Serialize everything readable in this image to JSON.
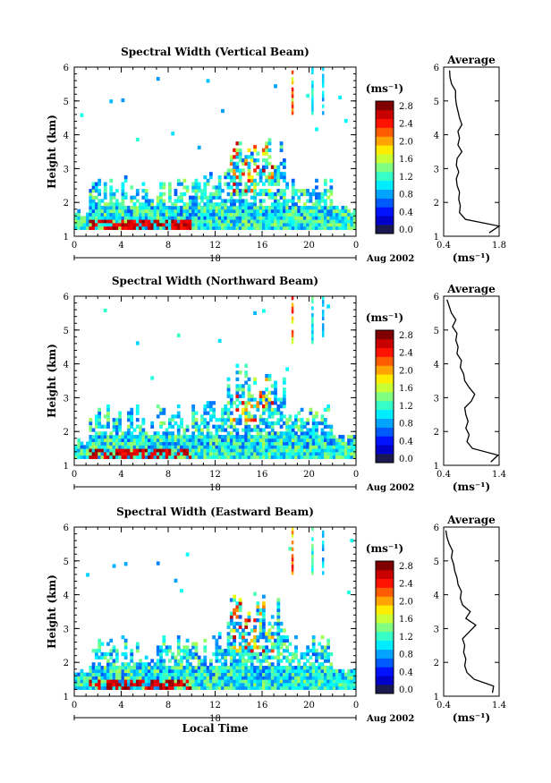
{
  "chart_data": [
    {
      "type": "heatmap",
      "title": "Spectral Width (Vertical Beam)",
      "ylabel": "Height (km)",
      "xlim": [
        0,
        24
      ],
      "ylim": [
        1,
        6
      ],
      "x_ticks": [
        "0",
        "4",
        "8",
        "12",
        "16",
        "20",
        "0"
      ],
      "y_ticks": [
        "1",
        "2",
        "3",
        "4",
        "5",
        "6"
      ],
      "date_bar_label": "18",
      "date_text": "Aug 2002",
      "colorbar": {
        "label": "(ms⁻¹)",
        "range": [
          0.0,
          2.8
        ],
        "ticks": [
          "0.0",
          "0.4",
          "0.8",
          "1.2",
          "1.6",
          "2.0",
          "2.4",
          "2.8"
        ]
      },
      "profile": {
        "title": "Average",
        "xlabel": "(ms⁻¹)",
        "xlim": [
          0.4,
          1.8
        ],
        "x_ticks": [
          "0.4",
          "1.8"
        ],
        "heights": [
          1.1,
          1.3,
          1.5,
          1.7,
          1.9,
          2.1,
          2.3,
          2.5,
          2.7,
          2.9,
          3.1,
          3.3,
          3.5,
          3.7,
          3.9,
          4.1,
          4.3,
          4.5,
          4.7,
          4.9,
          5.1,
          5.3,
          5.5,
          5.7,
          5.9
        ],
        "values": [
          1.55,
          1.8,
          0.95,
          0.8,
          0.82,
          0.78,
          0.8,
          0.74,
          0.72,
          0.78,
          0.72,
          0.74,
          0.86,
          0.76,
          0.8,
          0.76,
          0.86,
          0.8,
          0.76,
          0.72,
          0.7,
          0.7,
          0.6,
          0.56,
          0.55
        ]
      }
    },
    {
      "type": "heatmap",
      "title": "Spectral Width (Northward Beam)",
      "ylabel": "Height (km)",
      "xlim": [
        0,
        24
      ],
      "ylim": [
        1,
        6
      ],
      "x_ticks": [
        "0",
        "4",
        "8",
        "12",
        "16",
        "20",
        "0"
      ],
      "y_ticks": [
        "1",
        "2",
        "3",
        "4",
        "5",
        "6"
      ],
      "date_bar_label": "18",
      "date_text": "Aug 2002",
      "colorbar": {
        "label": "(ms⁻¹)",
        "range": [
          0.0,
          2.8
        ],
        "ticks": [
          "0.0",
          "0.4",
          "0.8",
          "1.2",
          "1.6",
          "2.0",
          "2.4",
          "2.8"
        ]
      },
      "profile": {
        "title": "Average",
        "xlabel": "(ms⁻¹)",
        "xlim": [
          0.4,
          1.4
        ],
        "x_ticks": [
          "0.4",
          "1.4"
        ],
        "heights": [
          1.1,
          1.3,
          1.5,
          1.7,
          1.9,
          2.1,
          2.3,
          2.5,
          2.7,
          2.9,
          3.1,
          3.3,
          3.5,
          3.7,
          3.9,
          4.1,
          4.3,
          4.5,
          4.7,
          4.9,
          5.1,
          5.3,
          5.5,
          5.7,
          5.9
        ],
        "values": [
          1.25,
          1.38,
          0.92,
          0.82,
          0.86,
          0.8,
          0.84,
          0.8,
          0.78,
          0.9,
          0.96,
          0.86,
          0.78,
          0.76,
          0.7,
          0.72,
          0.64,
          0.66,
          0.62,
          0.64,
          0.56,
          0.62,
          0.54,
          0.5,
          0.46
        ]
      }
    },
    {
      "type": "heatmap",
      "title": "Spectral Width (Eastward Beam)",
      "ylabel": "Height (km)",
      "xlabel": "Local Time",
      "xlim": [
        0,
        24
      ],
      "ylim": [
        1,
        6
      ],
      "x_ticks": [
        "0",
        "4",
        "8",
        "12",
        "16",
        "20",
        "0"
      ],
      "y_ticks": [
        "1",
        "2",
        "3",
        "4",
        "5",
        "6"
      ],
      "date_bar_label": "18",
      "date_text": "Aug 2002",
      "colorbar": {
        "label": "(ms⁻¹)",
        "range": [
          0.0,
          2.8
        ],
        "ticks": [
          "0.0",
          "0.4",
          "0.8",
          "1.2",
          "1.6",
          "2.0",
          "2.4",
          "2.8"
        ]
      },
      "profile": {
        "title": "Average",
        "xlabel": "(ms⁻¹)",
        "xlim": [
          0.4,
          1.4
        ],
        "x_ticks": [
          "0.4",
          "1.4"
        ],
        "heights": [
          1.1,
          1.3,
          1.5,
          1.7,
          1.9,
          2.1,
          2.3,
          2.5,
          2.7,
          2.9,
          3.1,
          3.3,
          3.5,
          3.7,
          3.9,
          4.1,
          4.3,
          4.5,
          4.7,
          4.9,
          5.1,
          5.3,
          5.5,
          5.7,
          5.9
        ],
        "values": [
          1.28,
          1.3,
          0.95,
          0.82,
          0.78,
          0.8,
          0.76,
          0.78,
          0.74,
          0.86,
          0.98,
          0.8,
          0.88,
          0.74,
          0.7,
          0.72,
          0.66,
          0.64,
          0.6,
          0.58,
          0.54,
          0.56,
          0.5,
          0.46,
          0.44
        ]
      }
    }
  ]
}
